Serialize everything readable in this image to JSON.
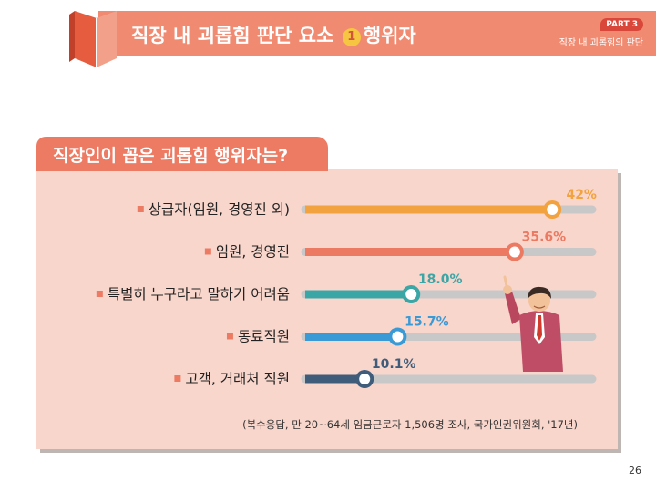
{
  "header": {
    "title": "직장 내 괴롭힘 판단 요소",
    "badge_number": "1",
    "title_suffix": "행위자",
    "part_label": "PART 3",
    "part_subtitle": "직장 내 괴롭힘의 판단"
  },
  "subtitle": "직장인이 꼽은 괴롭힘 행위자는?",
  "colors": {
    "header": "#f08a70",
    "panel": "#f9d6cc",
    "track": "#c8c8c8"
  },
  "chart_data": {
    "type": "bar",
    "categories": [
      "상급자(임원, 경영진 외)",
      "임원, 경영진",
      "특별히 누구라고 말하기 어려움",
      "동료직원",
      "고객, 거래처 직원"
    ],
    "values": [
      42,
      35.6,
      18.0,
      15.7,
      10.1
    ],
    "value_labels": [
      "42%",
      "35.6%",
      "18.0%",
      "15.7%",
      "10.1%"
    ],
    "colors": [
      "#f2a23e",
      "#ec7a62",
      "#3aa6a6",
      "#3a9ad6",
      "#3f5c7a"
    ],
    "xlim": [
      0,
      100
    ],
    "title": "",
    "xlabel": "",
    "ylabel": ""
  },
  "footnote": "(복수응답, 만 20~64세 임금근로자 1,506명 조사, 국가인권위원회, '17년)",
  "page_number": "26"
}
